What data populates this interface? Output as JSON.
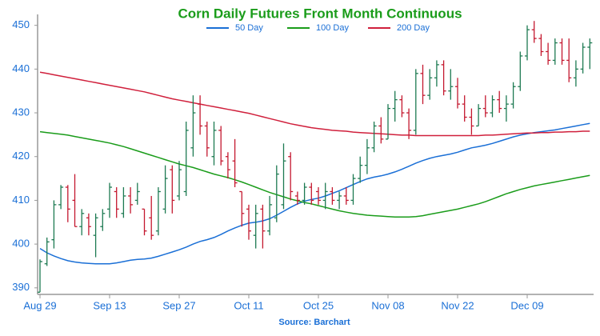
{
  "chart_data": {
    "type": "ohlc",
    "title": "Corn Daily Futures Front Month Continuous",
    "source": "Source: Barchart",
    "categories": [
      "Aug 29",
      null,
      null,
      null,
      null,
      null,
      null,
      null,
      null,
      null,
      "Sep 13",
      null,
      null,
      null,
      null,
      null,
      null,
      null,
      null,
      null,
      "Sep 27",
      null,
      null,
      null,
      null,
      null,
      null,
      null,
      null,
      null,
      "Oct 11",
      null,
      null,
      null,
      null,
      null,
      null,
      null,
      null,
      null,
      "Oct 25",
      null,
      null,
      null,
      null,
      null,
      null,
      null,
      null,
      null,
      "Nov 08",
      null,
      null,
      null,
      null,
      null,
      null,
      null,
      null,
      null,
      "Nov 22",
      null,
      null,
      null,
      null,
      null,
      null,
      null,
      null,
      null,
      "Dec 09",
      null,
      null,
      null,
      null,
      null,
      null,
      null,
      null,
      null
    ],
    "open": [
      389,
      395.5,
      401,
      409,
      413,
      410,
      404,
      406,
      402,
      404,
      408,
      412,
      407,
      411,
      410,
      408,
      406,
      403,
      408,
      417,
      411,
      412,
      422,
      432,
      427,
      420,
      426,
      420,
      419,
      412,
      408,
      402,
      408,
      403,
      406,
      409,
      420,
      411,
      410,
      413,
      412,
      410,
      412,
      410,
      411,
      410,
      415,
      418,
      422,
      427,
      424,
      431,
      433,
      430,
      426,
      439,
      434,
      438,
      441,
      435,
      436,
      432,
      429,
      427,
      431,
      430,
      433,
      431,
      432,
      436,
      443,
      449,
      447,
      444,
      442,
      446,
      442,
      438,
      440,
      445
    ],
    "high": [
      396.5,
      401.5,
      410,
      413.5,
      413.5,
      416,
      408,
      407,
      407,
      408,
      414,
      413,
      413,
      413,
      414,
      408,
      411,
      413,
      418,
      418,
      419,
      428,
      434,
      434,
      428,
      428,
      427,
      421,
      424,
      412,
      409,
      409,
      409,
      411,
      418,
      423,
      421,
      412,
      414,
      414,
      413,
      414,
      413,
      412,
      413,
      416,
      420,
      424,
      428,
      429,
      432,
      435,
      434,
      431,
      440,
      441,
      440,
      442,
      442,
      440,
      438,
      434,
      431,
      432,
      434,
      434,
      435,
      434,
      437,
      444,
      450,
      451,
      448,
      446,
      447,
      447,
      447,
      442,
      446,
      447
    ],
    "low": [
      389,
      395,
      399,
      408,
      405,
      404,
      402,
      402,
      397,
      403,
      406,
      406,
      406,
      407,
      409,
      402,
      401,
      402,
      407,
      407,
      410,
      411,
      420,
      425,
      420,
      418,
      418,
      415,
      413,
      404,
      401,
      399,
      399,
      402,
      405,
      408,
      410,
      409,
      409,
      409,
      409,
      408,
      409,
      408,
      409,
      409,
      414,
      416,
      421,
      423,
      424,
      428,
      429,
      424,
      425,
      432,
      433,
      436,
      434,
      433,
      431,
      428,
      425,
      427,
      429,
      429,
      430,
      428,
      431,
      435,
      442,
      446,
      443,
      441,
      441,
      441,
      437,
      436,
      439,
      440
    ],
    "close": [
      396,
      400.5,
      409,
      413,
      408,
      404,
      407,
      404,
      406,
      407,
      413,
      408,
      411,
      409,
      412,
      403,
      402,
      412,
      415,
      410,
      417,
      426,
      430,
      427,
      422,
      426,
      419,
      417,
      414,
      407,
      403,
      407,
      403,
      409,
      416,
      419,
      412,
      410,
      413,
      410,
      410,
      412,
      410,
      411,
      410,
      415,
      418,
      422,
      427,
      424,
      431,
      433,
      430,
      426,
      439,
      434,
      438,
      441,
      435,
      436,
      432,
      429,
      427,
      431,
      430,
      433,
      431,
      432,
      436,
      443,
      449,
      447,
      444,
      442,
      446,
      442,
      438,
      440,
      445,
      446
    ],
    "up_color": "#1d7a52",
    "down_color": "#c4182f",
    "series": [
      {
        "name": "50 Day",
        "color": "#1a6fd6",
        "values": [
          399,
          398,
          397.3,
          396.7,
          396.2,
          395.9,
          395.7,
          395.6,
          395.5,
          395.5,
          395.5,
          395.7,
          396,
          396.3,
          396.5,
          396.6,
          396.8,
          397.2,
          397.7,
          398.2,
          398.7,
          399.3,
          400,
          400.6,
          401,
          401.5,
          402.2,
          403,
          403.7,
          404.3,
          404.8,
          405,
          405.3,
          405.8,
          406.6,
          407.5,
          408.4,
          409.2,
          409.8,
          410.2,
          410.5,
          411,
          411.6,
          412.2,
          412.9,
          413.6,
          414.3,
          414.9,
          415.3,
          415.6,
          416,
          416.5,
          417.1,
          417.8,
          418.5,
          419.1,
          419.6,
          420,
          420.3,
          420.6,
          421,
          421.5,
          422,
          422.3,
          422.6,
          423,
          423.5,
          424,
          424.5,
          424.9,
          425.2,
          425.5,
          425.7,
          425.9,
          426.1,
          426.4,
          426.7,
          427,
          427.3,
          427.6
        ]
      },
      {
        "name": "100 Day",
        "color": "#1a9c1a",
        "values": [
          425.7,
          425.5,
          425.3,
          425.1,
          424.9,
          424.6,
          424.3,
          424,
          423.7,
          423.4,
          423.1,
          422.7,
          422.3,
          421.8,
          421.3,
          420.8,
          420.3,
          419.8,
          419.3,
          418.8,
          418.3,
          417.9,
          417.5,
          417,
          416.5,
          416,
          415.6,
          415.2,
          414.7,
          414.2,
          413.6,
          413,
          412.4,
          411.8,
          411.3,
          410.8,
          410.3,
          409.9,
          409.5,
          409.2,
          408.8,
          408.4,
          408,
          407.6,
          407.3,
          407,
          406.8,
          406.6,
          406.5,
          406.4,
          406.3,
          406.2,
          406.2,
          406.2,
          406.3,
          406.5,
          406.8,
          407.1,
          407.4,
          407.7,
          408,
          408.4,
          408.8,
          409.2,
          409.7,
          410.3,
          410.9,
          411.5,
          412,
          412.5,
          412.9,
          413.3,
          413.6,
          413.9,
          414.2,
          414.5,
          414.8,
          415.1,
          415.4,
          415.7
        ]
      },
      {
        "name": "200 Day",
        "color": "#d0203c",
        "values": [
          439.3,
          439,
          438.7,
          438.4,
          438.1,
          437.8,
          437.5,
          437.2,
          436.9,
          436.6,
          436.3,
          436,
          435.7,
          435.4,
          435.1,
          434.8,
          434.4,
          434,
          433.6,
          433.2,
          432.9,
          432.6,
          432.3,
          432,
          431.7,
          431.4,
          431.1,
          430.8,
          430.5,
          430.2,
          429.9,
          429.5,
          429.1,
          428.7,
          428.3,
          427.9,
          427.5,
          427.2,
          426.9,
          426.6,
          426.4,
          426.2,
          426,
          425.9,
          425.8,
          425.6,
          425.5,
          425.4,
          425.3,
          425.2,
          425.1,
          425,
          424.9,
          424.9,
          424.8,
          424.8,
          424.8,
          424.8,
          424.8,
          424.8,
          424.8,
          424.8,
          424.8,
          424.8,
          424.9,
          424.9,
          425,
          425.1,
          425.2,
          425.3,
          425.4,
          425.4,
          425.5,
          425.5,
          425.6,
          425.6,
          425.7,
          425.7,
          425.8,
          425.8
        ]
      }
    ],
    "ylim": [
      388.5,
      452.5
    ],
    "yticks": [
      390,
      400,
      410,
      420,
      430,
      440,
      450
    ],
    "grid": false
  }
}
